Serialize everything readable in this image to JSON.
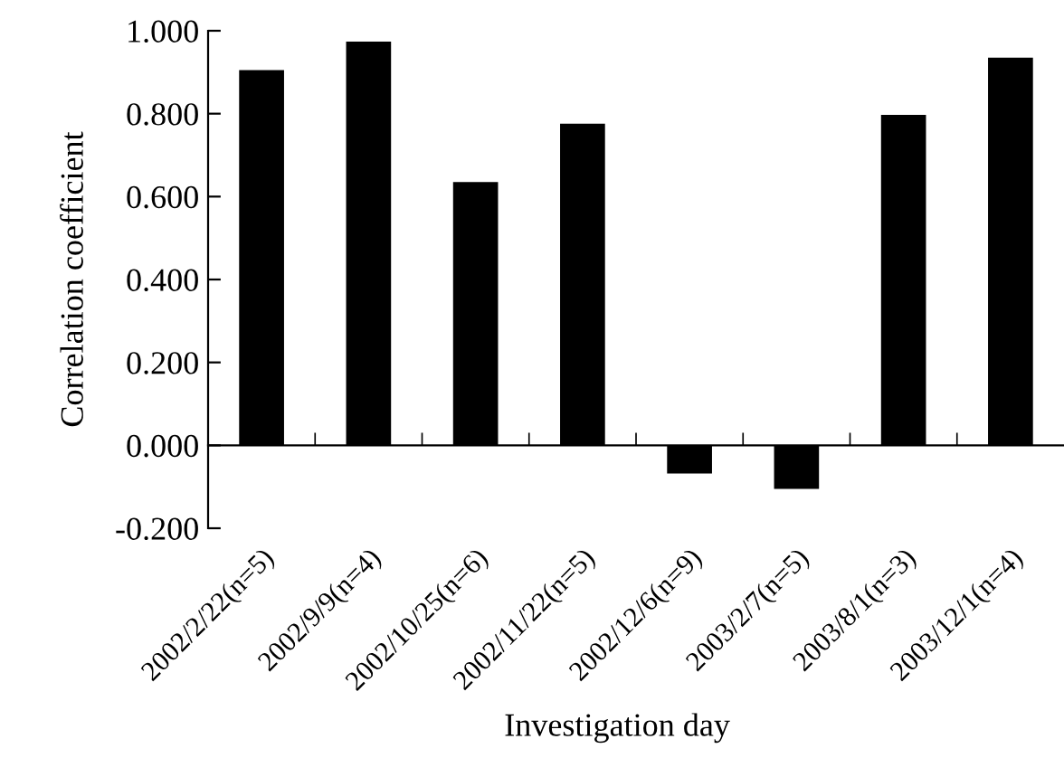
{
  "chart_data": {
    "type": "bar",
    "xlabel": "Investigation day",
    "ylabel": "Correlation coefficient",
    "categories": [
      "2002/2/22(n=5)",
      "2002/9/9(n=4)",
      "2002/10/25(n=6)",
      "2002/11/22(n=5)",
      "2002/12/6(n=9)",
      "2003/2/7(n=5)",
      "2003/8/1(n=3)",
      "2003/12/1(n=4)"
    ],
    "values": [
      0.905,
      0.974,
      0.635,
      0.776,
      -0.068,
      -0.105,
      0.797,
      0.935
    ],
    "color": "#000000",
    "ylim": [
      -0.2,
      1.0
    ],
    "yticks": [
      {
        "value": -0.2,
        "label": "-0.200"
      },
      {
        "value": 0,
        "label": "0.000"
      },
      {
        "value": 0.2,
        "label": "0.200"
      },
      {
        "value": 0.4,
        "label": "0.400"
      },
      {
        "value": 0.6,
        "label": "0.600"
      },
      {
        "value": 0.8,
        "label": "0.800"
      },
      {
        "value": 1.0,
        "label": "1.000"
      }
    ],
    "legend": false
  }
}
